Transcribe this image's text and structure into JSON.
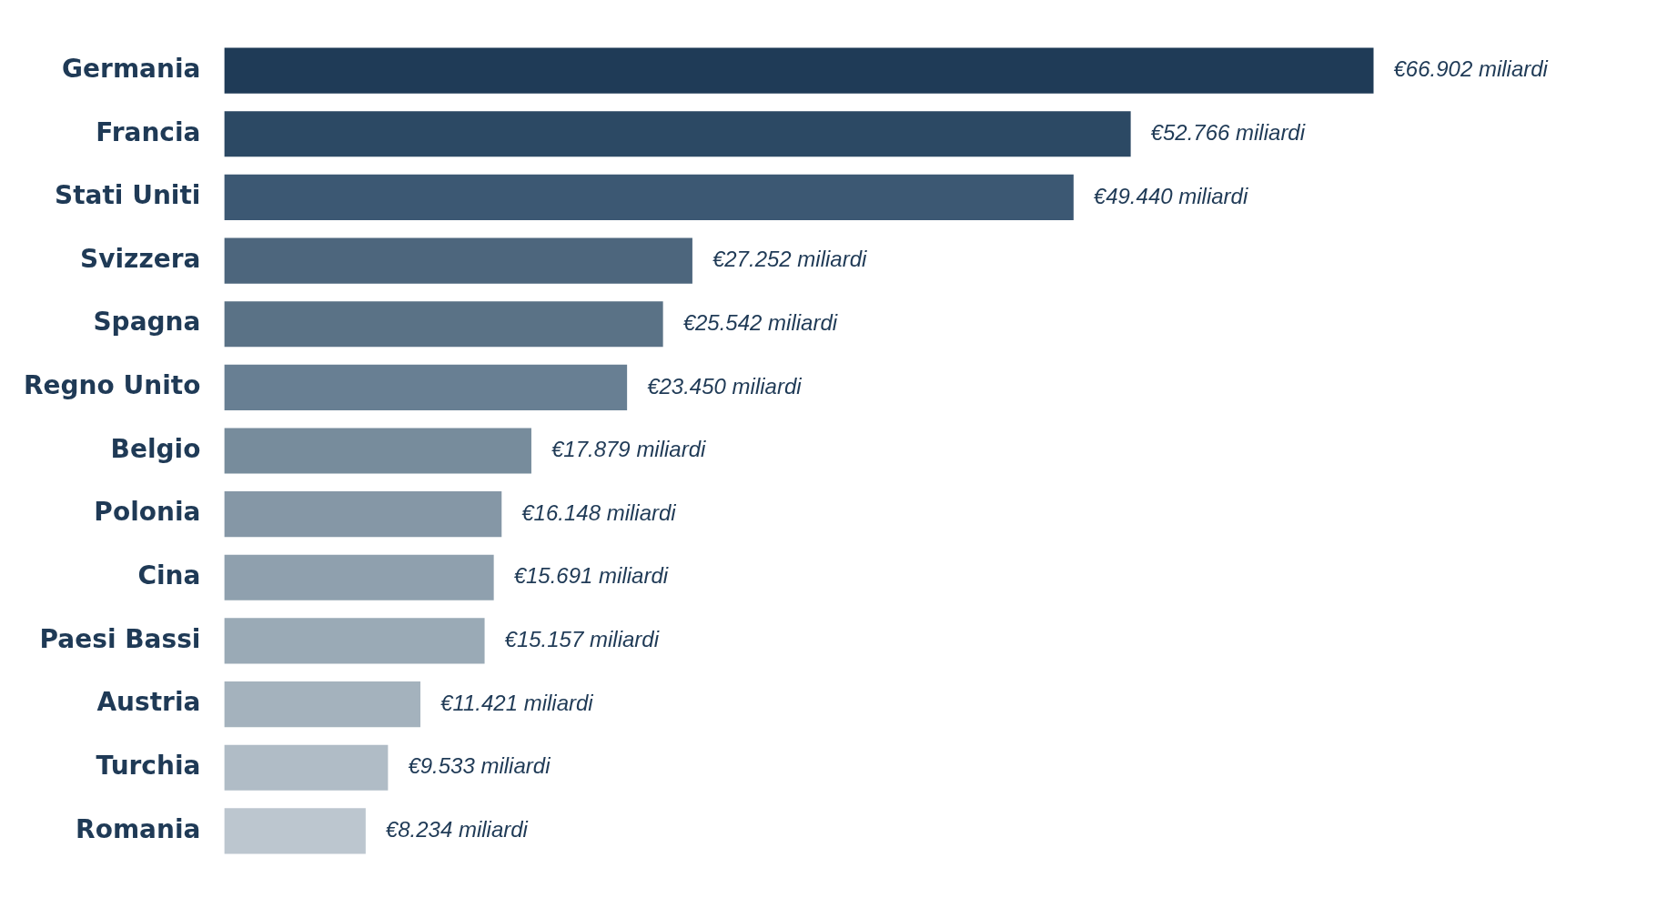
{
  "chart_data": {
    "type": "bar",
    "orientation": "horizontal",
    "categories": [
      "Germania",
      "Francia",
      "Stati Uniti",
      "Svizzera",
      "Spagna",
      "Regno Unito",
      "Belgio",
      "Polonia",
      "Cina",
      "Paesi Bassi",
      "Austria",
      "Turchia",
      "Romania"
    ],
    "values": [
      66.902,
      52.766,
      49.44,
      27.252,
      25.542,
      23.45,
      17.879,
      16.148,
      15.691,
      15.157,
      11.421,
      9.533,
      8.234
    ],
    "value_labels": [
      "€66.902 miliardi",
      "€52.766 miliardi",
      "€49.440 miliardi",
      "€27.252 miliardi",
      "€25.542 miliardi",
      "€23.450 miliardi",
      "€17.879 miliardi",
      "€16.148 miliardi",
      "€15.691 miliardi",
      "€15.157 miliardi",
      "€11.421 miliardi",
      "€9.533 miliardi",
      "€8.234 miliardi"
    ],
    "colors": [
      "#1f3b57",
      "#2c4964",
      "#3c5873",
      "#4d667d",
      "#5a7286",
      "#687f93",
      "#778c9c",
      "#8597a6",
      "#8fa0ae",
      "#9aaab6",
      "#a4b2bd",
      "#b0bcc6",
      "#bcc6cf"
    ],
    "legend": false
  }
}
